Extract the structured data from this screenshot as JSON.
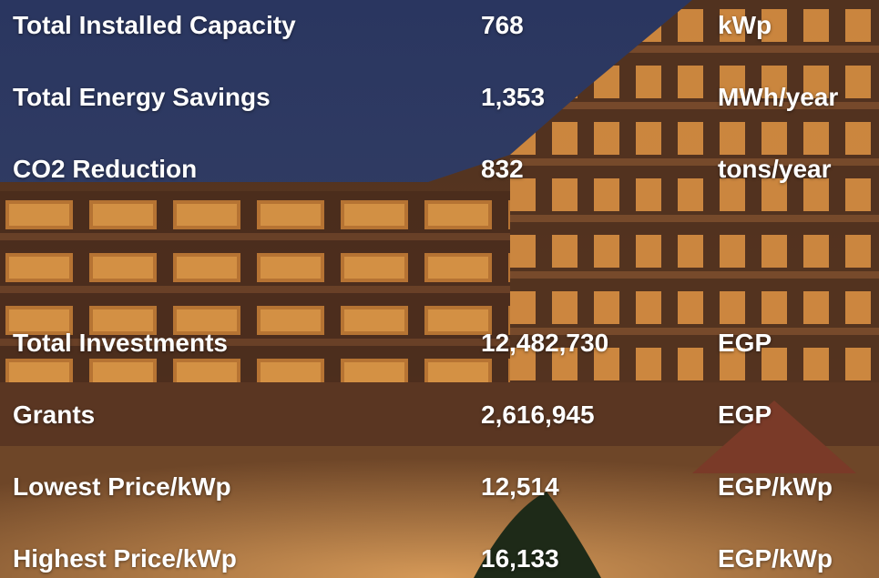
{
  "rows": [
    {
      "label": "Total Installed Capacity",
      "value": "768",
      "unit": "kWp"
    },
    {
      "label": "Total Energy Savings",
      "value": "1,353",
      "unit": "MWh/year"
    },
    {
      "label": "CO2 Reduction",
      "value": "832",
      "unit": "tons/year"
    },
    {
      "label": "Total Investments",
      "value": "12,482,730",
      "unit": "EGP"
    },
    {
      "label": "Grants",
      "value": "2,616,945",
      "unit": "EGP"
    },
    {
      "label": "Lowest Price/kWp",
      "value": "12,514",
      "unit": "EGP/kWp"
    },
    {
      "label": "Highest Price/kWp",
      "value": "16,133",
      "unit": "EGP/kWp"
    }
  ]
}
